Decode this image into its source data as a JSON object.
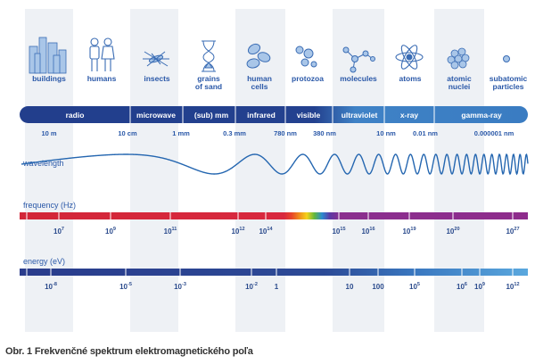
{
  "colors": {
    "navy": "#223e8c",
    "light_blue": "#4a8fce",
    "column_bg": "#eef1f5",
    "wave": "#2466b0",
    "label": "#2a58a8"
  },
  "objects": [
    {
      "label": "buildings",
      "icon": "buildings-icon"
    },
    {
      "label": "humans",
      "icon": "humans-icon"
    },
    {
      "label": "insects",
      "icon": "insect-icon"
    },
    {
      "label": "grains\nof sand",
      "icon": "hourglass-icon"
    },
    {
      "label": "human\ncells",
      "icon": "cells-icon"
    },
    {
      "label": "protozoa",
      "icon": "protozoa-icon"
    },
    {
      "label": "molecules",
      "icon": "molecule-icon"
    },
    {
      "label": "atoms",
      "icon": "atom-icon"
    },
    {
      "label": "atomic\nnuclei",
      "icon": "nucleus-icon"
    },
    {
      "label": "subatomic\nparticles",
      "icon": "particle-icon"
    }
  ],
  "bands": [
    "radio",
    "microwave",
    "(sub) mm",
    "infrared",
    "visible",
    "ultraviolet",
    "x-ray",
    "gamma-ray"
  ],
  "wavelength": {
    "label": "wavelength",
    "ticks": [
      "10 m",
      "10 cm",
      "1 mm",
      "0.3 mm",
      "780 nm",
      "380 nm",
      "10 nm",
      "0.01 nm",
      "0.000001 nm"
    ]
  },
  "frequency": {
    "label": "frequency (Hz)",
    "ticks": [
      {
        "base": "10",
        "exp": "7"
      },
      {
        "base": "10",
        "exp": "9"
      },
      {
        "base": "10",
        "exp": "11"
      },
      {
        "base": "10",
        "exp": "12"
      },
      {
        "base": "10",
        "exp": "14"
      },
      {
        "base": "10",
        "exp": "15"
      },
      {
        "base": "10",
        "exp": "16"
      },
      {
        "base": "10",
        "exp": "19"
      },
      {
        "base": "10",
        "exp": "20"
      },
      {
        "base": "10",
        "exp": "27"
      }
    ]
  },
  "energy": {
    "label": "energy (eV)",
    "ticks": [
      {
        "base": "10",
        "exp": "-8"
      },
      {
        "base": "10",
        "exp": "-5"
      },
      {
        "base": "10",
        "exp": "-3"
      },
      {
        "base": "10",
        "exp": "-2"
      },
      {
        "base": "1",
        "exp": ""
      },
      {
        "base": "10",
        "exp": ""
      },
      {
        "base": "100",
        "exp": ""
      },
      {
        "base": "10",
        "exp": "5"
      },
      {
        "base": "10",
        "exp": "6"
      },
      {
        "base": "10",
        "exp": "9"
      },
      {
        "base": "10",
        "exp": "12"
      }
    ]
  },
  "caption": "Obr. 1 Frekvenčné spektrum elektromagnetického poľa"
}
